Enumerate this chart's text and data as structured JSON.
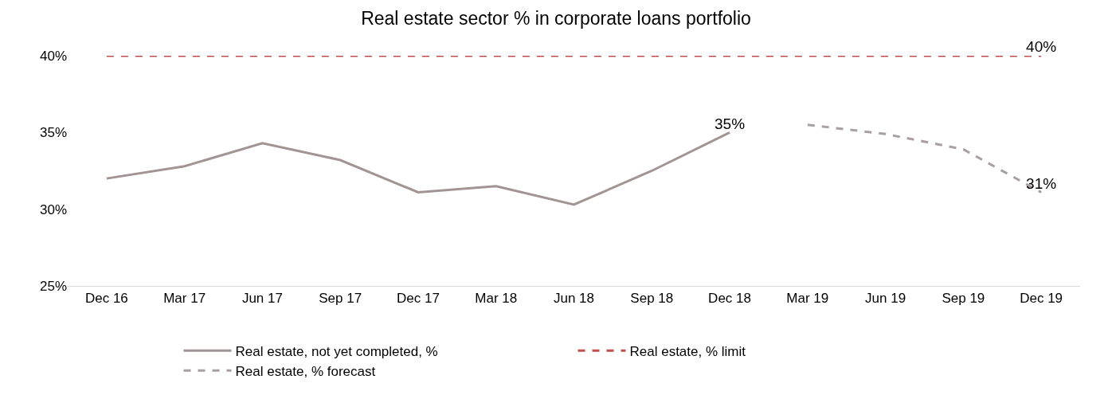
{
  "chart_data": {
    "type": "line",
    "title": "Real estate sector % in corporate loans portfolio",
    "categories": [
      "Dec 16",
      "Mar 17",
      "Jun 17",
      "Sep 17",
      "Dec 17",
      "Mar 18",
      "Jun 18",
      "Sep 18",
      "Dec 18",
      "Mar 19",
      "Jun 19",
      "Sep 19",
      "Dec 19"
    ],
    "series": [
      {
        "name": "Real estate, not yet completed, %",
        "color": "#a39494",
        "line_style": "solid",
        "values": [
          32.0,
          32.8,
          34.3,
          33.2,
          31.1,
          31.5,
          30.3,
          32.5,
          35.0,
          null,
          null,
          null,
          null
        ],
        "value_labels": [
          null,
          null,
          null,
          null,
          null,
          null,
          null,
          null,
          "35%",
          null,
          null,
          null,
          null
        ]
      },
      {
        "name": "Real estate, % limit",
        "color": "#c0504d",
        "line_style": "dashed",
        "values": [
          40,
          40,
          40,
          40,
          40,
          40,
          40,
          40,
          40,
          40,
          40,
          40,
          40
        ],
        "value_labels": [
          null,
          null,
          null,
          null,
          null,
          null,
          null,
          null,
          null,
          null,
          null,
          null,
          "40%"
        ]
      },
      {
        "name": "Real estate, % forecast",
        "color": "#a8a0a0",
        "line_style": "dashed",
        "values": [
          null,
          null,
          null,
          null,
          null,
          null,
          null,
          null,
          null,
          35.5,
          34.9,
          33.9,
          31.1
        ],
        "value_labels": [
          null,
          null,
          null,
          null,
          null,
          null,
          null,
          null,
          null,
          null,
          null,
          null,
          "31%"
        ]
      }
    ],
    "ylim": [
      25,
      40
    ],
    "yticks": [
      {
        "value": 25,
        "label": "25%"
      },
      {
        "value": 30,
        "label": "30%"
      },
      {
        "value": 35,
        "label": "35%"
      },
      {
        "value": 40,
        "label": "40%"
      }
    ],
    "legend": "bottom",
    "marker": "none"
  }
}
